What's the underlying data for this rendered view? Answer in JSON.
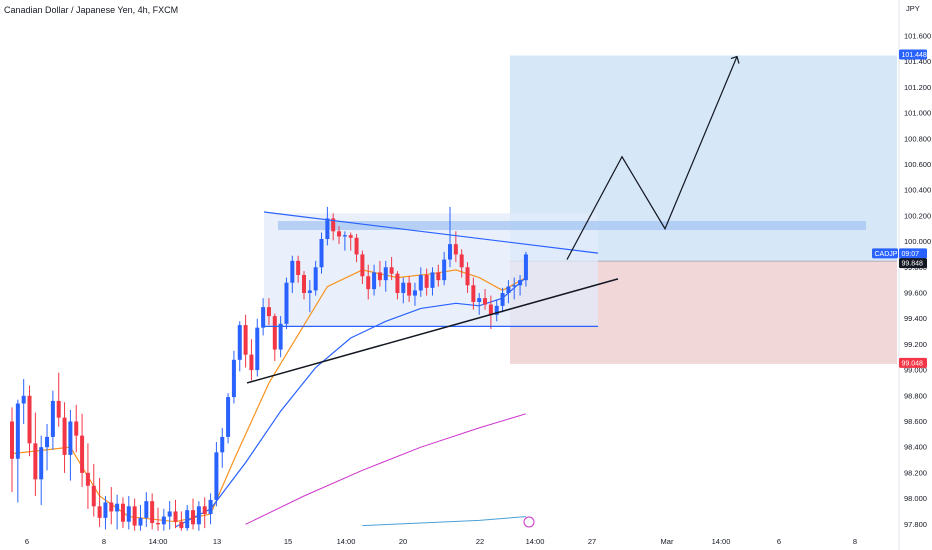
{
  "header": {
    "title": "Canadian Dollar / Japanese Yen, 4h, FXCM"
  },
  "colors": {
    "up": "#2962ff",
    "down": "#f23645",
    "ema_fast": "#f7931e",
    "ema_mid": "#2962ff",
    "ema_slow": "#cc33cc",
    "ema_long": "#4a9fd8",
    "target_zone": "#cfe3f7",
    "stop_zone": "#f1d3d5",
    "range_box": "#e1ebfb",
    "trendline": "#131722",
    "wedge_top": "#2962ff"
  },
  "chart_data": {
    "type": "candlestick",
    "symbol": "CADJPY",
    "currency": "JPY",
    "timeframe": "4h",
    "y_ticks": [
      "101.600",
      "101.400",
      "101.200",
      "101.000",
      "100.800",
      "100.600",
      "100.400",
      "100.200",
      "100.000",
      "99.800",
      "99.600",
      "99.400",
      "99.200",
      "99.000",
      "98.800",
      "98.600",
      "98.400",
      "98.200",
      "98.000",
      "97.800"
    ],
    "x_ticks": [
      "6",
      "8",
      "14:00",
      "13",
      "15",
      "14:00",
      "20",
      "22",
      "14:00",
      "27",
      "Mar",
      "14:00",
      "6",
      "8"
    ],
    "ylim": [
      97.74,
      101.88
    ],
    "price_tags": [
      {
        "label": "101.448",
        "value": 101.448,
        "color": "#2962ff"
      },
      {
        "label": "CADJPY",
        "value": 99.9,
        "color": "#2962ff"
      },
      {
        "label": "09:07",
        "value": 99.9,
        "color": "#2962ff"
      },
      {
        "label": "99.848",
        "value": 99.848,
        "color": "#131722"
      },
      {
        "label": "99.048",
        "value": 99.048,
        "color": "#f23645"
      }
    ],
    "candles": [
      [
        98.6,
        98.71,
        98.05,
        98.31
      ],
      [
        98.31,
        98.77,
        97.97,
        98.74
      ],
      [
        98.74,
        98.93,
        98.58,
        98.8
      ],
      [
        98.8,
        98.88,
        98.33,
        98.43
      ],
      [
        98.43,
        98.67,
        98.02,
        98.15
      ],
      [
        98.15,
        98.49,
        97.95,
        98.4
      ],
      [
        98.4,
        98.58,
        98.22,
        98.48
      ],
      [
        98.48,
        98.84,
        98.38,
        98.76
      ],
      [
        98.76,
        98.98,
        98.56,
        98.63
      ],
      [
        98.63,
        98.75,
        98.2,
        98.34
      ],
      [
        98.34,
        98.69,
        98.14,
        98.6
      ],
      [
        98.6,
        98.73,
        98.36,
        98.49
      ],
      [
        98.49,
        98.66,
        98.09,
        98.2
      ],
      [
        98.2,
        98.43,
        97.92,
        98.1
      ],
      [
        98.1,
        98.27,
        97.86,
        97.94
      ],
      [
        97.94,
        98.16,
        97.78,
        97.85
      ],
      [
        97.85,
        98.02,
        97.76,
        97.97
      ],
      [
        97.97,
        98.09,
        97.8,
        97.9
      ],
      [
        97.9,
        98.03,
        97.76,
        97.96
      ],
      [
        97.96,
        98.01,
        97.77,
        97.82
      ],
      [
        97.82,
        98.02,
        97.76,
        97.94
      ],
      [
        97.94,
        98.0,
        97.75,
        97.79
      ],
      [
        97.79,
        97.95,
        97.75,
        97.85
      ],
      [
        97.85,
        98.05,
        97.78,
        97.98
      ],
      [
        97.98,
        98.04,
        97.76,
        97.81
      ],
      [
        97.81,
        97.93,
        97.75,
        97.8
      ],
      [
        97.8,
        97.92,
        97.75,
        97.86
      ],
      [
        97.86,
        97.98,
        97.76,
        97.9
      ],
      [
        97.9,
        97.99,
        97.77,
        97.82
      ],
      [
        97.82,
        97.9,
        97.75,
        97.77
      ],
      [
        97.77,
        97.95,
        97.75,
        97.91
      ],
      [
        97.91,
        98.0,
        97.76,
        97.8
      ],
      [
        97.8,
        97.98,
        97.75,
        97.94
      ],
      [
        97.94,
        98.01,
        97.77,
        97.88
      ],
      [
        97.88,
        98.04,
        97.8,
        97.99
      ],
      [
        97.99,
        98.44,
        97.94,
        98.36
      ],
      [
        98.36,
        98.55,
        98.24,
        98.48
      ],
      [
        98.48,
        98.82,
        98.43,
        98.79
      ],
      [
        98.79,
        99.15,
        98.74,
        99.08
      ],
      [
        99.08,
        99.38,
        98.99,
        99.35
      ],
      [
        99.35,
        99.43,
        99.02,
        99.12
      ],
      [
        99.12,
        99.24,
        98.92,
        99.0
      ],
      [
        99.0,
        99.4,
        98.95,
        99.33
      ],
      [
        99.33,
        99.56,
        99.27,
        99.49
      ],
      [
        99.49,
        99.56,
        99.35,
        99.42
      ],
      [
        99.42,
        99.44,
        99.07,
        99.16
      ],
      [
        99.16,
        99.42,
        99.1,
        99.36
      ],
      [
        99.36,
        99.72,
        99.32,
        99.68
      ],
      [
        99.68,
        99.89,
        99.6,
        99.85
      ],
      [
        99.85,
        99.89,
        99.68,
        99.74
      ],
      [
        99.74,
        99.77,
        99.55,
        99.6
      ],
      [
        99.6,
        99.7,
        99.45,
        99.62
      ],
      [
        99.62,
        99.85,
        99.58,
        99.8
      ],
      [
        99.8,
        100.07,
        99.75,
        100.02
      ],
      [
        100.02,
        100.27,
        99.97,
        100.18
      ],
      [
        100.18,
        100.22,
        100.01,
        100.08
      ],
      [
        100.08,
        100.12,
        99.98,
        100.04
      ],
      [
        100.04,
        100.08,
        99.93,
        100.05
      ],
      [
        100.05,
        100.07,
        99.93,
        100.03
      ],
      [
        100.03,
        100.06,
        99.84,
        99.9
      ],
      [
        99.9,
        99.93,
        99.67,
        99.73
      ],
      [
        99.73,
        99.82,
        99.55,
        99.63
      ],
      [
        99.63,
        99.82,
        99.58,
        99.76
      ],
      [
        99.76,
        99.85,
        99.65,
        99.7
      ],
      [
        99.7,
        99.85,
        99.61,
        99.8
      ],
      [
        99.8,
        99.88,
        99.7,
        99.75
      ],
      [
        99.75,
        99.77,
        99.55,
        99.6
      ],
      [
        99.6,
        99.72,
        99.52,
        99.68
      ],
      [
        99.68,
        99.73,
        99.53,
        99.58
      ],
      [
        99.58,
        99.68,
        99.5,
        99.62
      ],
      [
        99.62,
        99.8,
        99.57,
        99.74
      ],
      [
        99.74,
        99.79,
        99.58,
        99.64
      ],
      [
        99.64,
        99.8,
        99.58,
        99.76
      ],
      [
        99.76,
        99.82,
        99.65,
        99.7
      ],
      [
        99.7,
        99.92,
        99.66,
        99.86
      ],
      [
        99.86,
        100.27,
        99.8,
        99.98
      ],
      [
        99.98,
        100.08,
        99.84,
        99.9
      ],
      [
        99.9,
        99.94,
        99.72,
        99.8
      ],
      [
        99.8,
        99.84,
        99.6,
        99.66
      ],
      [
        99.66,
        99.72,
        99.47,
        99.53
      ],
      [
        99.53,
        99.6,
        99.43,
        99.56
      ],
      [
        99.56,
        99.63,
        99.47,
        99.51
      ],
      [
        99.51,
        99.58,
        99.32,
        99.43
      ],
      [
        99.43,
        99.55,
        99.38,
        99.5
      ],
      [
        99.5,
        99.64,
        99.45,
        99.6
      ],
      [
        99.6,
        99.7,
        99.52,
        99.65
      ],
      [
        99.65,
        99.72,
        99.55,
        99.66
      ],
      [
        99.66,
        99.74,
        99.58,
        99.7
      ],
      [
        99.7,
        99.92,
        99.65,
        99.9
      ]
    ],
    "ema_fast": [
      [
        0,
        98.35
      ],
      [
        10,
        98.4
      ],
      [
        15,
        98.02
      ],
      [
        20,
        97.86
      ],
      [
        28,
        97.82
      ],
      [
        34,
        97.88
      ],
      [
        38,
        98.3
      ],
      [
        44,
        98.9
      ],
      [
        50,
        99.35
      ],
      [
        54,
        99.65
      ],
      [
        60,
        99.78
      ],
      [
        66,
        99.72
      ],
      [
        72,
        99.75
      ],
      [
        76,
        99.78
      ],
      [
        80,
        99.72
      ],
      [
        84,
        99.62
      ],
      [
        88,
        99.72
      ]
    ],
    "ema_mid": [
      [
        28,
        97.78
      ],
      [
        34,
        97.92
      ],
      [
        40,
        98.28
      ],
      [
        46,
        98.68
      ],
      [
        52,
        99.02
      ],
      [
        58,
        99.25
      ],
      [
        64,
        99.38
      ],
      [
        70,
        99.48
      ],
      [
        76,
        99.52
      ],
      [
        80,
        99.5
      ],
      [
        84,
        99.56
      ],
      [
        88,
        99.72
      ]
    ],
    "ema_slow": [
      [
        40,
        97.8
      ],
      [
        50,
        98.02
      ],
      [
        60,
        98.22
      ],
      [
        70,
        98.4
      ],
      [
        80,
        98.55
      ],
      [
        88,
        98.66
      ]
    ],
    "ema_long": [
      [
        60,
        97.79
      ],
      [
        70,
        97.81
      ],
      [
        80,
        97.83
      ],
      [
        88,
        97.86
      ]
    ],
    "drawings": {
      "target_zone": {
        "top": 101.448,
        "bottom": 99.848
      },
      "stop_zone": {
        "top": 99.848,
        "bottom": 99.048
      },
      "range_box": {
        "top": 100.22,
        "bottom": 99.34
      },
      "resistance_band": {
        "top": 100.16,
        "bottom": 100.09
      }
    }
  }
}
